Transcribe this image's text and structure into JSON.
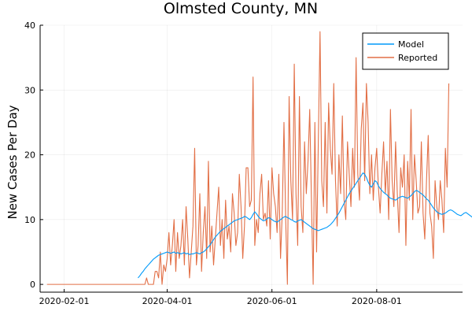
{
  "chart_data": {
    "type": "line",
    "title": "Olmsted County, MN",
    "xlabel": "",
    "ylabel": "New Cases Per Day",
    "x_start": "2020-01-22",
    "x_tick_labels": [
      "2020-02-01",
      "2020-04-01",
      "2020-06-01",
      "2020-08-01"
    ],
    "x_tick_values": [
      "2020-02-01",
      "2020-04-01",
      "2020-06-01",
      "2020-08-01"
    ],
    "xlim": [
      "2020-01-18",
      "2020-09-20"
    ],
    "ylim": [
      -1.2,
      40
    ],
    "y_ticks": [
      0,
      10,
      20,
      30,
      40
    ],
    "grid": true,
    "legend_position": "top-right",
    "series": [
      {
        "name": "Model",
        "color": "#009AFA",
        "x_start": "2020-03-15",
        "values": [
          1.0,
          1.3,
          1.7,
          2.0,
          2.4,
          2.7,
          3.0,
          3.3,
          3.6,
          3.9,
          4.1,
          4.3,
          4.5,
          4.6,
          4.7,
          4.8,
          4.9,
          5.0,
          4.9,
          4.8,
          4.9,
          5.0,
          4.8,
          4.9,
          4.8,
          4.7,
          4.8,
          4.9,
          4.7,
          4.8,
          4.6,
          4.7,
          4.7,
          4.8,
          4.9,
          4.8,
          4.7,
          4.9,
          5.0,
          5.2,
          5.5,
          5.8,
          6.1,
          6.5,
          6.9,
          7.3,
          7.6,
          7.9,
          8.2,
          8.4,
          8.6,
          8.8,
          9.0,
          9.2,
          9.4,
          9.6,
          9.8,
          9.9,
          10.0,
          10.1,
          10.2,
          10.3,
          10.5,
          10.4,
          10.2,
          10.0,
          10.3,
          10.8,
          11.2,
          10.9,
          10.5,
          10.2,
          10.0,
          9.8,
          9.9,
          10.1,
          10.3,
          10.2,
          10.0,
          9.8,
          9.7,
          9.6,
          9.8,
          10.0,
          10.2,
          10.4,
          10.5,
          10.3,
          10.2,
          10.0,
          9.9,
          9.7,
          9.6,
          9.8,
          9.9,
          10.0,
          9.8,
          9.6,
          9.4,
          9.2,
          9.0,
          8.8,
          8.6,
          8.5,
          8.4,
          8.3,
          8.4,
          8.5,
          8.6,
          8.7,
          8.8,
          9.0,
          9.2,
          9.5,
          9.8,
          10.2,
          10.6,
          11.0,
          11.5,
          12.0,
          12.5,
          13.0,
          13.5,
          14.0,
          14.4,
          14.8,
          15.2,
          15.6,
          16.0,
          16.4,
          16.8,
          17.2,
          17.0,
          16.5,
          15.8,
          15.3,
          15.0,
          15.5,
          16.0,
          15.8,
          15.2,
          14.8,
          14.5,
          14.2,
          14.0,
          13.8,
          13.5,
          13.3,
          13.2,
          13.1,
          13.0,
          13.2,
          13.4,
          13.5,
          13.6,
          13.5,
          13.4,
          13.3,
          13.5,
          13.7,
          14.0,
          14.3,
          14.5,
          14.4,
          14.2,
          14.0,
          13.8,
          13.5,
          13.2,
          13.0,
          12.6,
          12.2,
          11.8,
          11.5,
          11.2,
          11.0,
          10.9,
          10.8,
          10.9,
          11.0,
          11.2,
          11.4,
          11.5,
          11.4,
          11.2,
          11.0,
          10.8,
          10.7,
          10.6,
          10.8,
          11.0,
          11.1,
          10.9,
          10.7,
          10.5,
          10.3,
          10.2,
          10.0,
          9.9,
          9.8,
          9.9,
          10.1,
          10.3,
          10.5,
          10.6
        ]
      },
      {
        "name": "Reported",
        "color": "#E26F46",
        "x_start": "2020-01-22",
        "values": [
          0,
          0,
          0,
          0,
          0,
          0,
          0,
          0,
          0,
          0,
          0,
          0,
          0,
          0,
          0,
          0,
          0,
          0,
          0,
          0,
          0,
          0,
          0,
          0,
          0,
          0,
          0,
          0,
          0,
          0,
          0,
          0,
          0,
          0,
          0,
          0,
          0,
          0,
          0,
          0,
          0,
          0,
          0,
          0,
          0,
          0,
          0,
          0,
          0,
          0,
          0,
          0,
          0,
          0,
          0,
          0,
          0,
          0,
          1,
          0,
          0,
          0,
          0,
          2,
          2,
          1,
          5,
          0,
          3,
          2,
          4,
          8,
          3,
          6,
          10,
          2,
          8,
          4,
          6,
          10,
          3,
          12,
          7,
          1,
          5,
          9,
          21,
          3,
          6,
          14,
          2,
          8,
          12,
          4,
          19,
          5,
          9,
          3,
          7,
          11,
          15,
          6,
          10,
          4,
          13,
          7,
          9,
          5,
          14,
          11,
          6,
          8,
          17,
          12,
          4,
          9,
          18,
          18,
          12,
          13,
          32,
          6,
          10,
          8,
          14,
          17,
          10,
          11,
          9,
          16,
          7,
          18,
          14,
          12,
          8,
          17,
          4,
          11,
          25,
          10,
          0,
          29,
          16,
          10,
          34,
          14,
          6,
          29,
          12,
          8,
          22,
          14,
          19,
          27,
          13,
          0,
          25,
          5,
          22,
          39,
          16,
          12,
          25,
          11,
          28,
          21,
          17,
          31,
          16,
          9,
          20,
          14,
          26,
          13,
          10,
          22,
          17,
          12,
          21,
          15,
          35,
          17,
          13,
          24,
          28,
          16,
          31,
          25,
          14,
          20,
          13,
          18,
          21,
          15,
          11,
          17,
          22,
          14,
          19,
          10,
          27,
          16,
          12,
          22,
          14,
          8,
          18,
          15,
          20,
          6,
          19,
          13,
          27,
          10,
          20,
          16,
          11,
          12,
          22,
          11,
          7,
          16,
          23,
          11,
          9,
          4,
          16,
          12,
          10,
          16,
          13,
          8,
          21,
          15,
          31
        ]
      }
    ]
  }
}
